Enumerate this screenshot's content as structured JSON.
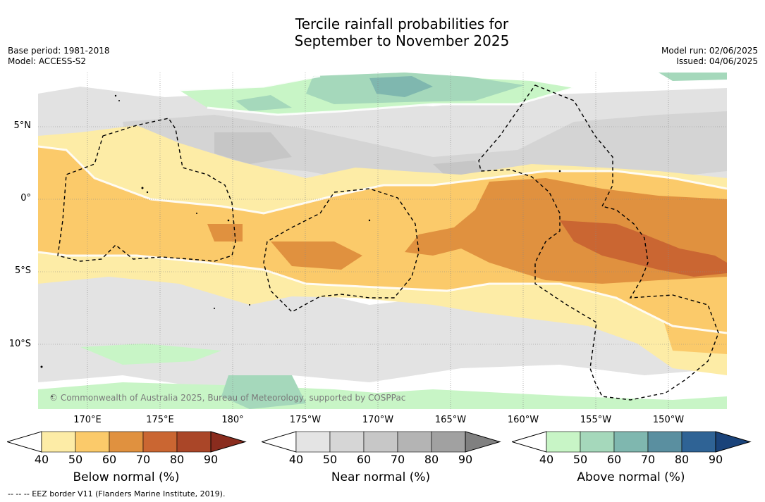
{
  "header": {
    "title_line1": "Tercile rainfall probabilities for",
    "title_line2": "September to November 2025",
    "base_period": "Base period: 1981-2018",
    "model": "Model: ACCESS-S2",
    "model_run": "Model run: 02/06/2025",
    "issued": "Issued: 04/06/2025"
  },
  "map": {
    "lat_ticks": [
      "5°N",
      "0°",
      "5°S",
      "10°S"
    ],
    "lon_ticks": [
      "170°E",
      "175°E",
      "180°",
      "175°W",
      "170°W",
      "165°W",
      "160°W",
      "155°W",
      "150°W"
    ],
    "credit": "© Commonwealth of Australia 2025, Bureau of Meteorology, supported by COSPPac",
    "colors": {
      "below": [
        "#fdeca6",
        "#fbca6a",
        "#e0913f",
        "#ca6632",
        "#aa4628",
        "#8a2c1e"
      ],
      "near": [
        "#e4e4e4",
        "#d6d6d6",
        "#c7c7c7",
        "#b4b4b4",
        "#a1a1a1",
        "#808080"
      ],
      "above": [
        "#c8f5c6",
        "#a5d8bb",
        "#7fb7af",
        "#5a8fa0",
        "#2f6395",
        "#1a437a"
      ]
    }
  },
  "colorbars": [
    {
      "label": "Below normal (%)",
      "ticks": [
        "40",
        "50",
        "60",
        "70",
        "80",
        "90"
      ]
    },
    {
      "label": "Near normal (%)",
      "ticks": [
        "40",
        "50",
        "60",
        "70",
        "80",
        "90"
      ]
    },
    {
      "label": "Above normal (%)",
      "ticks": [
        "40",
        "50",
        "60",
        "70",
        "80",
        "90"
      ]
    }
  ],
  "footer": "--  --  -- EEZ border V11 (Flanders Marine Institute, 2019)."
}
